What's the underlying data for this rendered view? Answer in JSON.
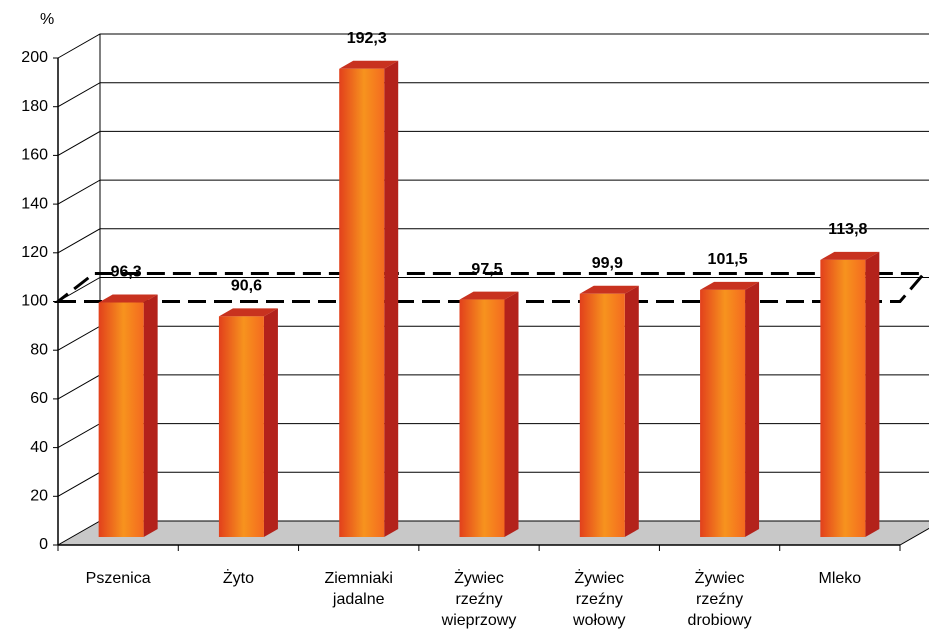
{
  "chart_data": {
    "type": "bar3d",
    "y_axis_label": "%",
    "categories": [
      "Pszenica",
      "Żyto",
      "Ziemniaki jadalne",
      "Żywiec rzeźny wieprzowy",
      "Żywiec rzeźny wołowy",
      "Żywiec rzeźny drobiowy",
      "Mleko"
    ],
    "values": [
      96.3,
      90.6,
      192.3,
      97.5,
      99.9,
      101.5,
      113.8
    ],
    "value_labels": [
      "96,3",
      "90,6",
      "192,3",
      "97,5",
      "99,9",
      "101,5",
      "113,8"
    ],
    "color": "#f07a1e",
    "ylim": [
      0,
      200
    ],
    "yticks": [
      0,
      20,
      40,
      60,
      80,
      100,
      120,
      140,
      160,
      180,
      200
    ],
    "reference_value": 100,
    "grid": true
  }
}
